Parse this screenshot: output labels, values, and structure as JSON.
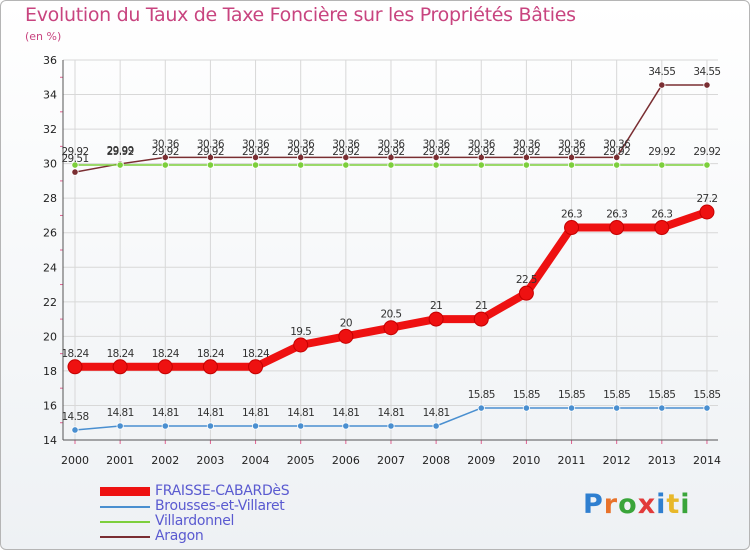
{
  "title": "Evolution du Taux de Taxe Foncière sur les Propriétés Bâties",
  "unit": "(en %)",
  "logo": {
    "letters": [
      {
        "ch": "P",
        "color": "#2f7fd0"
      },
      {
        "ch": "r",
        "color": "#e8722a"
      },
      {
        "ch": "o",
        "color": "#3aa53a"
      },
      {
        "ch": "x",
        "color": "#e23b3b"
      },
      {
        "ch": "i",
        "color": "#2f7fd0"
      },
      {
        "ch": "t",
        "color": "#e8b82a"
      },
      {
        "ch": "i",
        "color": "#3aa53a"
      }
    ]
  },
  "chart_data": {
    "type": "line",
    "title": "Evolution du Taux de Taxe Foncière sur les Propriétés Bâties",
    "xlabel": "",
    "ylabel": "(en %)",
    "ylim": [
      14,
      36
    ],
    "yticks": [
      "14",
      "16",
      "18",
      "20",
      "22",
      "24",
      "26",
      "28",
      "30",
      "32",
      "34",
      "36"
    ],
    "grid": true,
    "legend_position": "bottom-left",
    "x": [
      "2000",
      "2001",
      "2002",
      "2003",
      "2004",
      "2005",
      "2006",
      "2007",
      "2008",
      "2009",
      "2010",
      "2011",
      "2012",
      "2013",
      "2014"
    ],
    "series": [
      {
        "name": "Aragon",
        "color": "#7a2e32",
        "values": [
          29.51,
          29.99,
          30.36,
          30.36,
          30.36,
          30.36,
          30.36,
          30.36,
          30.36,
          30.36,
          30.36,
          30.36,
          30.36,
          34.55,
          34.55
        ],
        "labels": [
          "29.51",
          "29.99",
          "30.36",
          "30.36",
          "30.36",
          "30.36",
          "30.36",
          "30.36",
          "30.36",
          "30.36",
          "30.36",
          "30.36",
          "30.36",
          "34.55",
          "34.55"
        ]
      },
      {
        "name": "Villardonnel",
        "color": "#7dcf3c",
        "values": [
          29.92,
          29.92,
          29.92,
          29.92,
          29.92,
          29.92,
          29.92,
          29.92,
          29.92,
          29.92,
          29.92,
          29.92,
          29.92,
          29.92,
          29.92
        ],
        "labels": [
          "29.92",
          "29.92",
          "29.92",
          "29.92",
          "29.92",
          "29.92",
          "29.92",
          "29.92",
          "29.92",
          "29.92",
          "29.92",
          "29.92",
          "29.92",
          "29.92",
          "29.92"
        ]
      },
      {
        "name": "Brousses-et-Villaret",
        "color": "#4a8fd0",
        "values": [
          14.58,
          14.81,
          14.81,
          14.81,
          14.81,
          14.81,
          14.81,
          14.81,
          14.81,
          15.85,
          15.85,
          15.85,
          15.85,
          15.85,
          15.85
        ],
        "labels": [
          "14.58",
          "14.81",
          "14.81",
          "14.81",
          "14.81",
          "14.81",
          "14.81",
          "14.81",
          "14.81",
          "15.85",
          "15.85",
          "15.85",
          "15.85",
          "15.85",
          "15.85"
        ]
      },
      {
        "name": "FRAISSE-CABARDèS",
        "color": "#ee1111",
        "values": [
          18.24,
          18.24,
          18.24,
          18.24,
          18.24,
          19.5,
          20,
          20.5,
          21,
          21,
          22.5,
          26.3,
          26.3,
          26.3,
          27.2
        ],
        "labels": [
          "18.24",
          "18.24",
          "18.24",
          "18.24",
          "18.24",
          "19.5",
          "20",
          "20.5",
          "21",
          "21",
          "22.5",
          "26.3",
          "26.3",
          "26.3",
          "27.2"
        ]
      }
    ]
  }
}
